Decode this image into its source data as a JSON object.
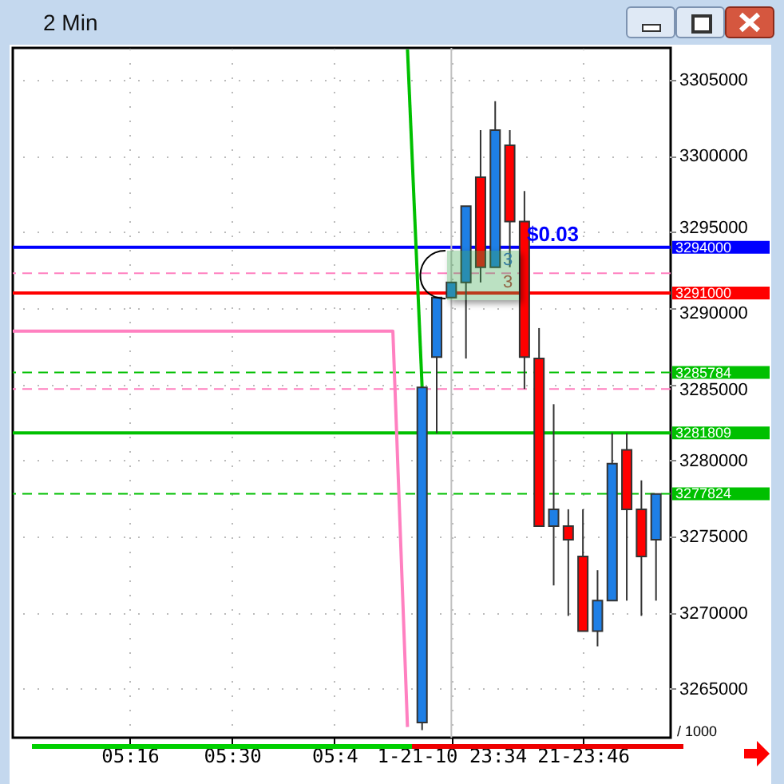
{
  "chart_data": {
    "type": "candlestick",
    "title": "2 Min",
    "categories": [
      null,
      null,
      null,
      null,
      null,
      null,
      null,
      null,
      "05:16",
      null,
      null,
      null,
      null,
      null,
      null,
      "05:30",
      null,
      null,
      null,
      null,
      null,
      null,
      "05:4",
      null,
      null,
      null,
      null,
      null,
      null,
      null,
      "1-21-10 23:34",
      null,
      null,
      null,
      null,
      null,
      null,
      null,
      null,
      "21-23:46",
      null,
      null,
      null,
      null,
      null,
      null
    ],
    "ohlc": [
      null,
      null,
      null,
      null,
      null,
      null,
      null,
      null,
      null,
      null,
      null,
      null,
      null,
      null,
      null,
      null,
      null,
      null,
      null,
      null,
      null,
      null,
      null,
      null,
      null,
      null,
      null,
      null,
      [
        3262800,
        3284800,
        3262300,
        3284800
      ],
      [
        3286800,
        3290700,
        3281800,
        3290700
      ],
      [
        3290700,
        3291700,
        3290700,
        3291700
      ],
      [
        3291700,
        3296700,
        3286700,
        3296700
      ],
      [
        3298600,
        3301700,
        3291700,
        3292700
      ],
      [
        3292700,
        3303600,
        3292700,
        3301700
      ],
      [
        3300700,
        3301700,
        3292700,
        3295700
      ],
      [
        3295700,
        3297700,
        3284700,
        3286800
      ],
      [
        3286700,
        3288700,
        3275700,
        3275700
      ],
      [
        3275700,
        3283700,
        3271800,
        3276800
      ],
      [
        3275700,
        3276800,
        3269800,
        3274800
      ],
      [
        3273700,
        3276800,
        3268800,
        3268800
      ],
      [
        3268800,
        3272800,
        3267800,
        3270800
      ],
      [
        3270800,
        3281800,
        3270800,
        3279800
      ],
      [
        3280700,
        3281800,
        3270800,
        3276800
      ],
      [
        3276800,
        3278700,
        3269800,
        3273700
      ],
      [
        3274800,
        3277800,
        3270800,
        3277800
      ],
      null
    ],
    "colors": [
      null,
      null,
      null,
      null,
      null,
      null,
      null,
      null,
      null,
      null,
      null,
      null,
      null,
      null,
      null,
      null,
      null,
      null,
      null,
      null,
      null,
      null,
      null,
      null,
      null,
      null,
      null,
      null,
      "#1e7fe6",
      "#1e7fe6",
      "#1e7fe6",
      "#1e7fe6",
      "#ff0000",
      "#1e7fe6",
      "#ff0000",
      "#ff0000",
      "#ff0000",
      "#1e7fe6",
      "#ff0000",
      "#ff0000",
      "#1e7fe6",
      "#1e7fe6",
      "#ff0000",
      "#ff0000",
      "#1e7fe6",
      null
    ],
    "series": [
      {
        "type": "line",
        "color": "#ff80c0",
        "values": [
          3288500,
          3288500,
          3288500,
          3288500,
          3288500,
          3288500,
          3288500,
          3288500,
          3288500,
          3288500,
          3288500,
          3288500,
          3288500,
          3288500,
          3288500,
          3288500,
          3288500,
          3288500,
          3288500,
          3288500,
          3288500,
          3288500,
          3288500,
          3288500,
          3288500,
          3288500,
          3288500,
          3262500,
          null,
          null,
          null,
          null,
          null,
          null,
          null,
          null,
          null,
          null,
          null,
          null,
          null,
          null,
          null,
          null,
          null,
          null
        ]
      },
      {
        "type": "line",
        "color": "#00c000",
        "values": [
          null,
          null,
          null,
          null,
          null,
          null,
          null,
          null,
          null,
          null,
          null,
          null,
          null,
          null,
          null,
          null,
          null,
          null,
          null,
          null,
          null,
          null,
          null,
          null,
          null,
          null,
          null,
          3307000,
          3284800,
          null,
          null,
          null,
          null,
          null,
          null,
          null,
          null,
          null,
          null,
          null,
          null,
          null,
          null,
          null,
          null,
          null
        ]
      }
    ],
    "ylim": [
      3261800,
      3307100
    ],
    "yticks": [
      3265000,
      3270000,
      3275000,
      3280000,
      3285000,
      3290000,
      3295000,
      3300000,
      3305000
    ],
    "grid": true,
    "ref_lines": [
      {
        "axis": "y",
        "value": 3294000,
        "label": "3294000",
        "color": "#0000ff"
      },
      {
        "axis": "y",
        "value": 3291000,
        "label": "3291000",
        "color": "#ff0000"
      },
      {
        "axis": "y",
        "value": 3285784,
        "label": "3285784",
        "color": "#00c000",
        "line_style": "dashed"
      },
      {
        "axis": "y",
        "value": 3281809,
        "label": "3281809",
        "color": "#00c000"
      },
      {
        "axis": "y",
        "value": 3277824,
        "label": "3277824",
        "color": "#00c000",
        "line_style": "dashed"
      },
      {
        "axis": "y",
        "value": 3292300,
        "color": "#ff80c0",
        "line_style": "dashed"
      },
      {
        "axis": "y",
        "value": 3284700,
        "color": "#ff80c0",
        "line_style": "dashed"
      },
      {
        "axis": "x",
        "value": "1-21-10 23:34",
        "color": "#c0c0c0"
      }
    ],
    "annotations": [
      {
        "text": "$0.03",
        "y": 3294000
      },
      "3",
      "3",
      "/ 1000"
    ]
  }
}
